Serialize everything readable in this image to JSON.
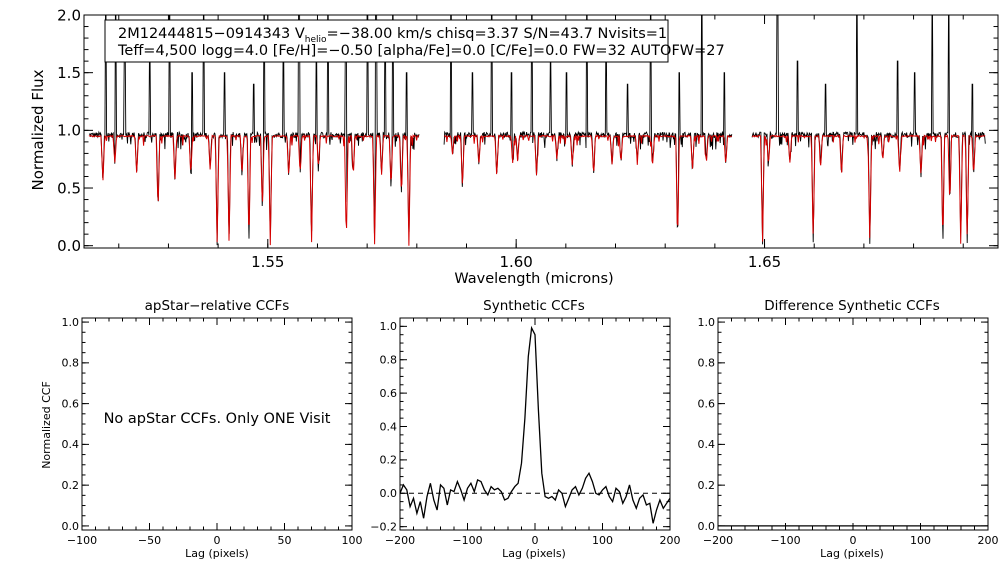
{
  "colors": {
    "observed": "#000000",
    "model": "#d40000",
    "axis": "#000000",
    "background": "#ffffff"
  },
  "chart_data": [
    {
      "type": "line",
      "name": "spectrum",
      "xlabel": "Wavelength (microns)",
      "ylabel": "Normalized Flux",
      "xlim": [
        1.513,
        1.697
      ],
      "ylim": [
        -0.02,
        2.0
      ],
      "xticks": [
        1.55,
        1.6,
        1.65
      ],
      "xtick_labels": [
        "1.55",
        "1.60",
        "1.65"
      ],
      "yticks": [
        0.0,
        0.5,
        1.0,
        1.5,
        2.0
      ],
      "ytick_labels": [
        "0.0",
        "0.5",
        "1.0",
        "1.5",
        "2.0"
      ],
      "annotation": {
        "line1_a": "2M12444815−0914343  V",
        "line1_sub": "helio",
        "line1_b": "=−38.00 km/s  chisq=3.37  S/N=43.7  Nvisits=1",
        "line2": "Teff=4,500 logg=4.0 [Fe/H]=−0.50 [alpha/Fe]=0.0 [C/Fe]=0.0 FW=32 AUTOFW=27"
      },
      "chip_ranges": [
        [
          1.514,
          1.5805
        ],
        [
          1.5855,
          1.6435
        ],
        [
          1.6475,
          1.6945
        ]
      ],
      "series": [
        {
          "name": "Observed spectrum",
          "color": "#000000",
          "continuum": 0.96,
          "noise": 0.025
        },
        {
          "name": "Synthetic model",
          "color": "#d40000",
          "continuum": 0.95,
          "noise": 0.006
        }
      ],
      "absorption_lines": [
        [
          1.5168,
          0.55
        ],
        [
          1.5192,
          0.72
        ],
        [
          1.5236,
          0.62
        ],
        [
          1.5279,
          0.3
        ],
        [
          1.5313,
          0.55
        ],
        [
          1.5345,
          0.62
        ],
        [
          1.5384,
          0.65
        ],
        [
          1.5398,
          0.0
        ],
        [
          1.5422,
          0.0
        ],
        [
          1.5448,
          0.6
        ],
        [
          1.5462,
          0.0
        ],
        [
          1.5489,
          0.3
        ],
        [
          1.5505,
          0.0
        ],
        [
          1.5542,
          0.6
        ],
        [
          1.5565,
          0.62
        ],
        [
          1.5588,
          0.0
        ],
        [
          1.5602,
          0.7
        ],
        [
          1.5658,
          0.0
        ],
        [
          1.5672,
          0.6
        ],
        [
          1.5715,
          0.0
        ],
        [
          1.5729,
          0.62
        ],
        [
          1.5748,
          0.5
        ],
        [
          1.5769,
          0.45
        ],
        [
          1.5784,
          0.0
        ],
        [
          1.5872,
          0.8
        ],
        [
          1.5892,
          0.5
        ],
        [
          1.5925,
          0.7
        ],
        [
          1.5961,
          0.6
        ],
        [
          1.5993,
          0.72
        ],
        [
          1.6003,
          0.74
        ],
        [
          1.6041,
          0.62
        ],
        [
          1.6082,
          0.75
        ],
        [
          1.6113,
          0.7
        ],
        [
          1.6156,
          0.6
        ],
        [
          1.6193,
          0.7
        ],
        [
          1.6211,
          0.72
        ],
        [
          1.6244,
          0.74
        ],
        [
          1.6275,
          0.72
        ],
        [
          1.6325,
          0.0
        ],
        [
          1.6355,
          0.65
        ],
        [
          1.6383,
          0.72
        ],
        [
          1.6422,
          0.7
        ],
        [
          1.6496,
          0.0
        ],
        [
          1.6508,
          0.7
        ],
        [
          1.6551,
          0.72
        ],
        [
          1.6598,
          0.0
        ],
        [
          1.6613,
          0.7
        ],
        [
          1.6655,
          0.6
        ],
        [
          1.6712,
          0.0
        ],
        [
          1.6738,
          0.74
        ],
        [
          1.6772,
          0.62
        ],
        [
          1.6815,
          0.6
        ],
        [
          1.6859,
          0.0
        ],
        [
          1.6873,
          0.35
        ],
        [
          1.6895,
          0.0
        ],
        [
          1.6908,
          0.0
        ],
        [
          1.6921,
          0.6
        ]
      ],
      "emission_spikes": [
        [
          1.5174,
          2.0
        ],
        [
          1.5194,
          2.0
        ],
        [
          1.5212,
          1.6
        ],
        [
          1.5262,
          1.7
        ],
        [
          1.5302,
          2.0
        ],
        [
          1.5348,
          1.5
        ],
        [
          1.5371,
          2.0
        ],
        [
          1.5413,
          1.5
        ],
        [
          1.5472,
          1.4
        ],
        [
          1.5493,
          2.0
        ],
        [
          1.5531,
          1.7
        ],
        [
          1.5563,
          2.0
        ],
        [
          1.5598,
          1.6
        ],
        [
          1.5621,
          2.0
        ],
        [
          1.5657,
          1.7
        ],
        [
          1.5701,
          2.0
        ],
        [
          1.5718,
          2.0
        ],
        [
          1.5736,
          1.9
        ],
        [
          1.5752,
          2.0
        ],
        [
          1.5779,
          1.5
        ],
        [
          1.5869,
          2.0
        ],
        [
          1.5912,
          1.5
        ],
        [
          1.5951,
          2.0
        ],
        [
          1.5991,
          1.5
        ],
        [
          1.6032,
          2.0
        ],
        [
          1.6069,
          1.6
        ],
        [
          1.6101,
          1.5
        ],
        [
          1.6142,
          2.0
        ],
        [
          1.6181,
          1.7
        ],
        [
          1.6224,
          1.4
        ],
        [
          1.6271,
          2.0
        ],
        [
          1.6328,
          1.5
        ],
        [
          1.6374,
          2.0
        ],
        [
          1.6419,
          1.5
        ],
        [
          1.6526,
          2.0
        ],
        [
          1.6566,
          1.6
        ],
        [
          1.6623,
          1.4
        ],
        [
          1.6686,
          2.0
        ],
        [
          1.6768,
          1.6
        ],
        [
          1.6802,
          1.5
        ],
        [
          1.6838,
          2.0
        ],
        [
          1.6871,
          2.0
        ],
        [
          1.6918,
          1.4
        ]
      ]
    },
    {
      "type": "line",
      "name": "apstar-ccf",
      "title": "apStar−relative CCFs",
      "xlabel": "Lag (pixels)",
      "ylabel": "Normalized CCF",
      "xlim": [
        -100,
        100
      ],
      "ylim": [
        -0.02,
        1.02
      ],
      "xticks": [
        -100,
        -50,
        0,
        50,
        100
      ],
      "xtick_labels": [
        "−100",
        "−50",
        "0",
        "50",
        "100"
      ],
      "yticks": [
        0.0,
        0.2,
        0.4,
        0.6,
        0.8,
        1.0
      ],
      "ytick_labels": [
        "0.0",
        "0.2",
        "0.4",
        "0.6",
        "0.8",
        "1.0"
      ],
      "message": "No apStar CCFs.  Only ONE Visit",
      "series": []
    },
    {
      "type": "line",
      "name": "synthetic-ccf",
      "title": "Synthetic CCFs",
      "xlabel": "Lag (pixels)",
      "xlim": [
        -200,
        200
      ],
      "ylim": [
        -0.22,
        1.05
      ],
      "xticks": [
        -200,
        -100,
        0,
        100,
        200
      ],
      "xtick_labels": [
        "−200",
        "−100",
        "0",
        "100",
        "200"
      ],
      "yticks": [
        -0.2,
        0.0,
        0.2,
        0.4,
        0.6,
        0.8,
        1.0
      ],
      "ytick_labels": [
        "−0.2",
        "0.0",
        "0.2",
        "0.4",
        "0.6",
        "0.8",
        "1.0"
      ],
      "zero_line": 0.0,
      "series": [
        {
          "name": "CCF",
          "x": [
            -200,
            -195,
            -190,
            -185,
            -180,
            -175,
            -170,
            -165,
            -160,
            -155,
            -150,
            -145,
            -140,
            -135,
            -130,
            -125,
            -120,
            -115,
            -110,
            -105,
            -100,
            -95,
            -90,
            -85,
            -80,
            -75,
            -70,
            -65,
            -60,
            -55,
            -50,
            -45,
            -40,
            -35,
            -30,
            -25,
            -20,
            -15,
            -10,
            -5,
            0,
            5,
            10,
            15,
            20,
            25,
            30,
            35,
            40,
            45,
            50,
            55,
            60,
            65,
            70,
            75,
            80,
            85,
            90,
            95,
            100,
            105,
            110,
            115,
            120,
            125,
            130,
            135,
            140,
            145,
            150,
            155,
            160,
            165,
            170,
            175,
            180,
            185,
            190,
            195,
            200
          ],
          "y": [
            0.0,
            0.05,
            0.02,
            -0.08,
            -0.03,
            -0.12,
            -0.05,
            -0.15,
            -0.02,
            0.06,
            -0.04,
            -0.1,
            0.05,
            0.03,
            -0.07,
            0.02,
            0.01,
            0.07,
            0.02,
            -0.04,
            0.03,
            0.06,
            0.01,
            0.08,
            0.07,
            0.02,
            -0.01,
            0.04,
            0.02,
            0.03,
            0.01,
            -0.04,
            -0.03,
            0.01,
            0.04,
            0.06,
            0.18,
            0.45,
            0.82,
            0.99,
            0.95,
            0.5,
            0.12,
            -0.02,
            -0.03,
            -0.02,
            -0.04,
            0.02,
            0.0,
            -0.08,
            -0.03,
            0.02,
            0.04,
            -0.01,
            0.03,
            0.09,
            0.12,
            0.07,
            0.0,
            -0.01,
            0.02,
            0.04,
            -0.02,
            -0.05,
            0.03,
            0.01,
            -0.06,
            -0.02,
            0.05,
            -0.04,
            -0.09,
            -0.03,
            -0.01,
            -0.07,
            -0.06,
            -0.18,
            -0.1,
            -0.04,
            -0.09,
            -0.06,
            -0.03
          ]
        }
      ]
    },
    {
      "type": "line",
      "name": "difference-ccf",
      "title": "Difference Synthetic CCFs",
      "xlabel": "Lag (pixels)",
      "xlim": [
        -200,
        200
      ],
      "ylim": [
        -0.02,
        1.02
      ],
      "xticks": [
        -200,
        -100,
        0,
        100,
        200
      ],
      "xtick_labels": [
        "−200",
        "−100",
        "0",
        "100",
        "200"
      ],
      "yticks": [
        0.0,
        0.2,
        0.4,
        0.6,
        0.8,
        1.0
      ],
      "ytick_labels": [
        "0.0",
        "0.2",
        "0.4",
        "0.6",
        "0.8",
        "1.0"
      ],
      "series": [
        {
          "name": "Difference",
          "x": [
            -200,
            200
          ],
          "y": [
            0.0,
            0.0
          ]
        }
      ]
    }
  ]
}
